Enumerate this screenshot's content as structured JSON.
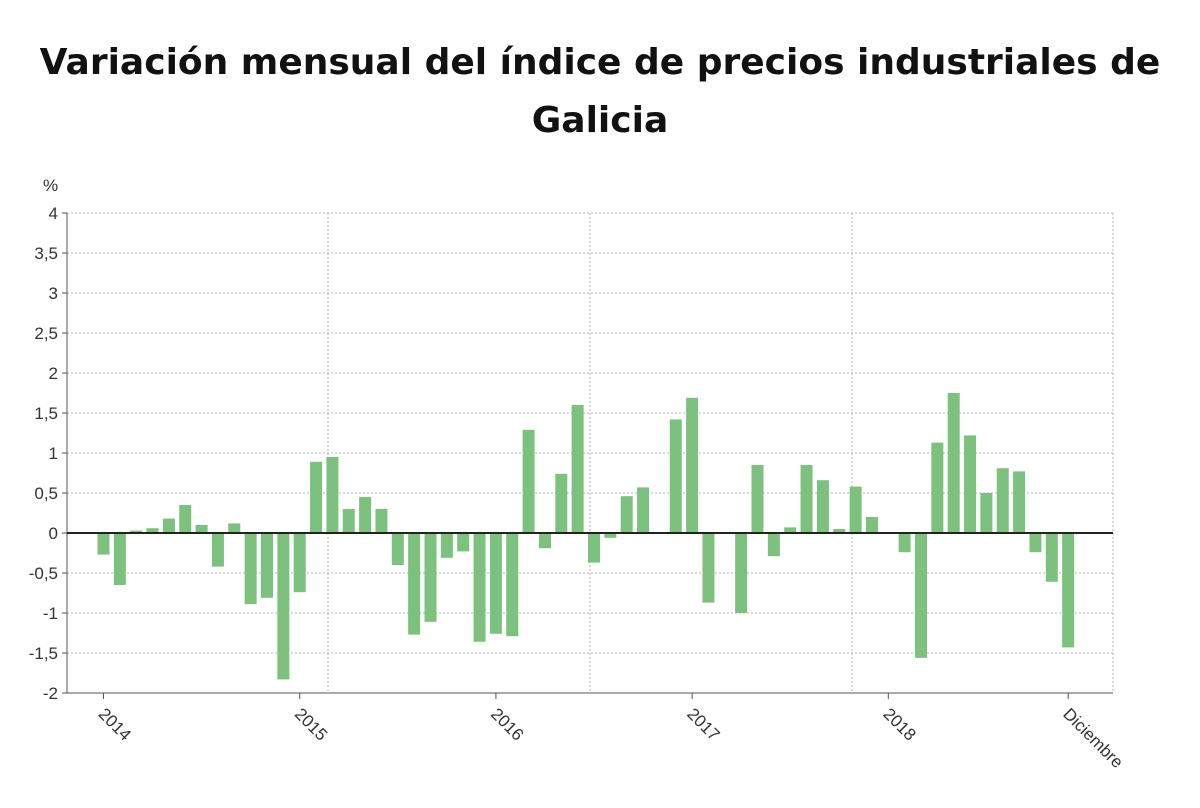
{
  "chart_data": {
    "type": "bar",
    "title_line1": "Variación mensual del índice de precios industriales de",
    "title_line2": "Galicia",
    "ylabel": "%",
    "ylim": [
      -2,
      4
    ],
    "yticks": [
      4,
      3.5,
      3,
      2.5,
      2,
      1.5,
      1,
      0.5,
      0,
      -0.5,
      -1,
      -1.5,
      -2
    ],
    "ytick_labels": [
      "4",
      "3,5",
      "3",
      "2,5",
      "2",
      "1,5",
      "1",
      "0,5",
      "0",
      "-0,5",
      "-1",
      "-1,5",
      "-2"
    ],
    "x_labels": [
      "2014",
      "2015",
      "2016",
      "2017",
      "2018",
      "Diciembre"
    ],
    "grid": true,
    "bar_color": "#7dc17e",
    "zero_line_color": "#222222",
    "grid_color": "#b5b5b5",
    "series": [
      {
        "values": [
          -0.27,
          -0.65,
          0.03,
          0.06,
          0.18,
          0.35,
          0.1,
          -0.42,
          0.12,
          -0.89,
          -0.81,
          -1.83,
          -0.74,
          0.89,
          0.95,
          0.3,
          0.45,
          0.3,
          -0.4,
          -1.27,
          -1.11,
          -0.31,
          -0.23,
          -1.36,
          -1.26,
          -1.29,
          1.29,
          -0.19,
          0.74,
          1.6,
          -0.37,
          -0.06,
          0.46,
          0.57,
          0.0,
          1.42,
          1.69,
          -0.87,
          0.0,
          -1.0,
          0.85,
          -0.29,
          0.07,
          0.85,
          0.66,
          0.05,
          0.58,
          0.2,
          0.0,
          -0.24,
          -1.56,
          1.13,
          1.75,
          1.22,
          0.5,
          0.81,
          0.77,
          -0.24,
          -0.61,
          -1.43
        ]
      }
    ]
  }
}
